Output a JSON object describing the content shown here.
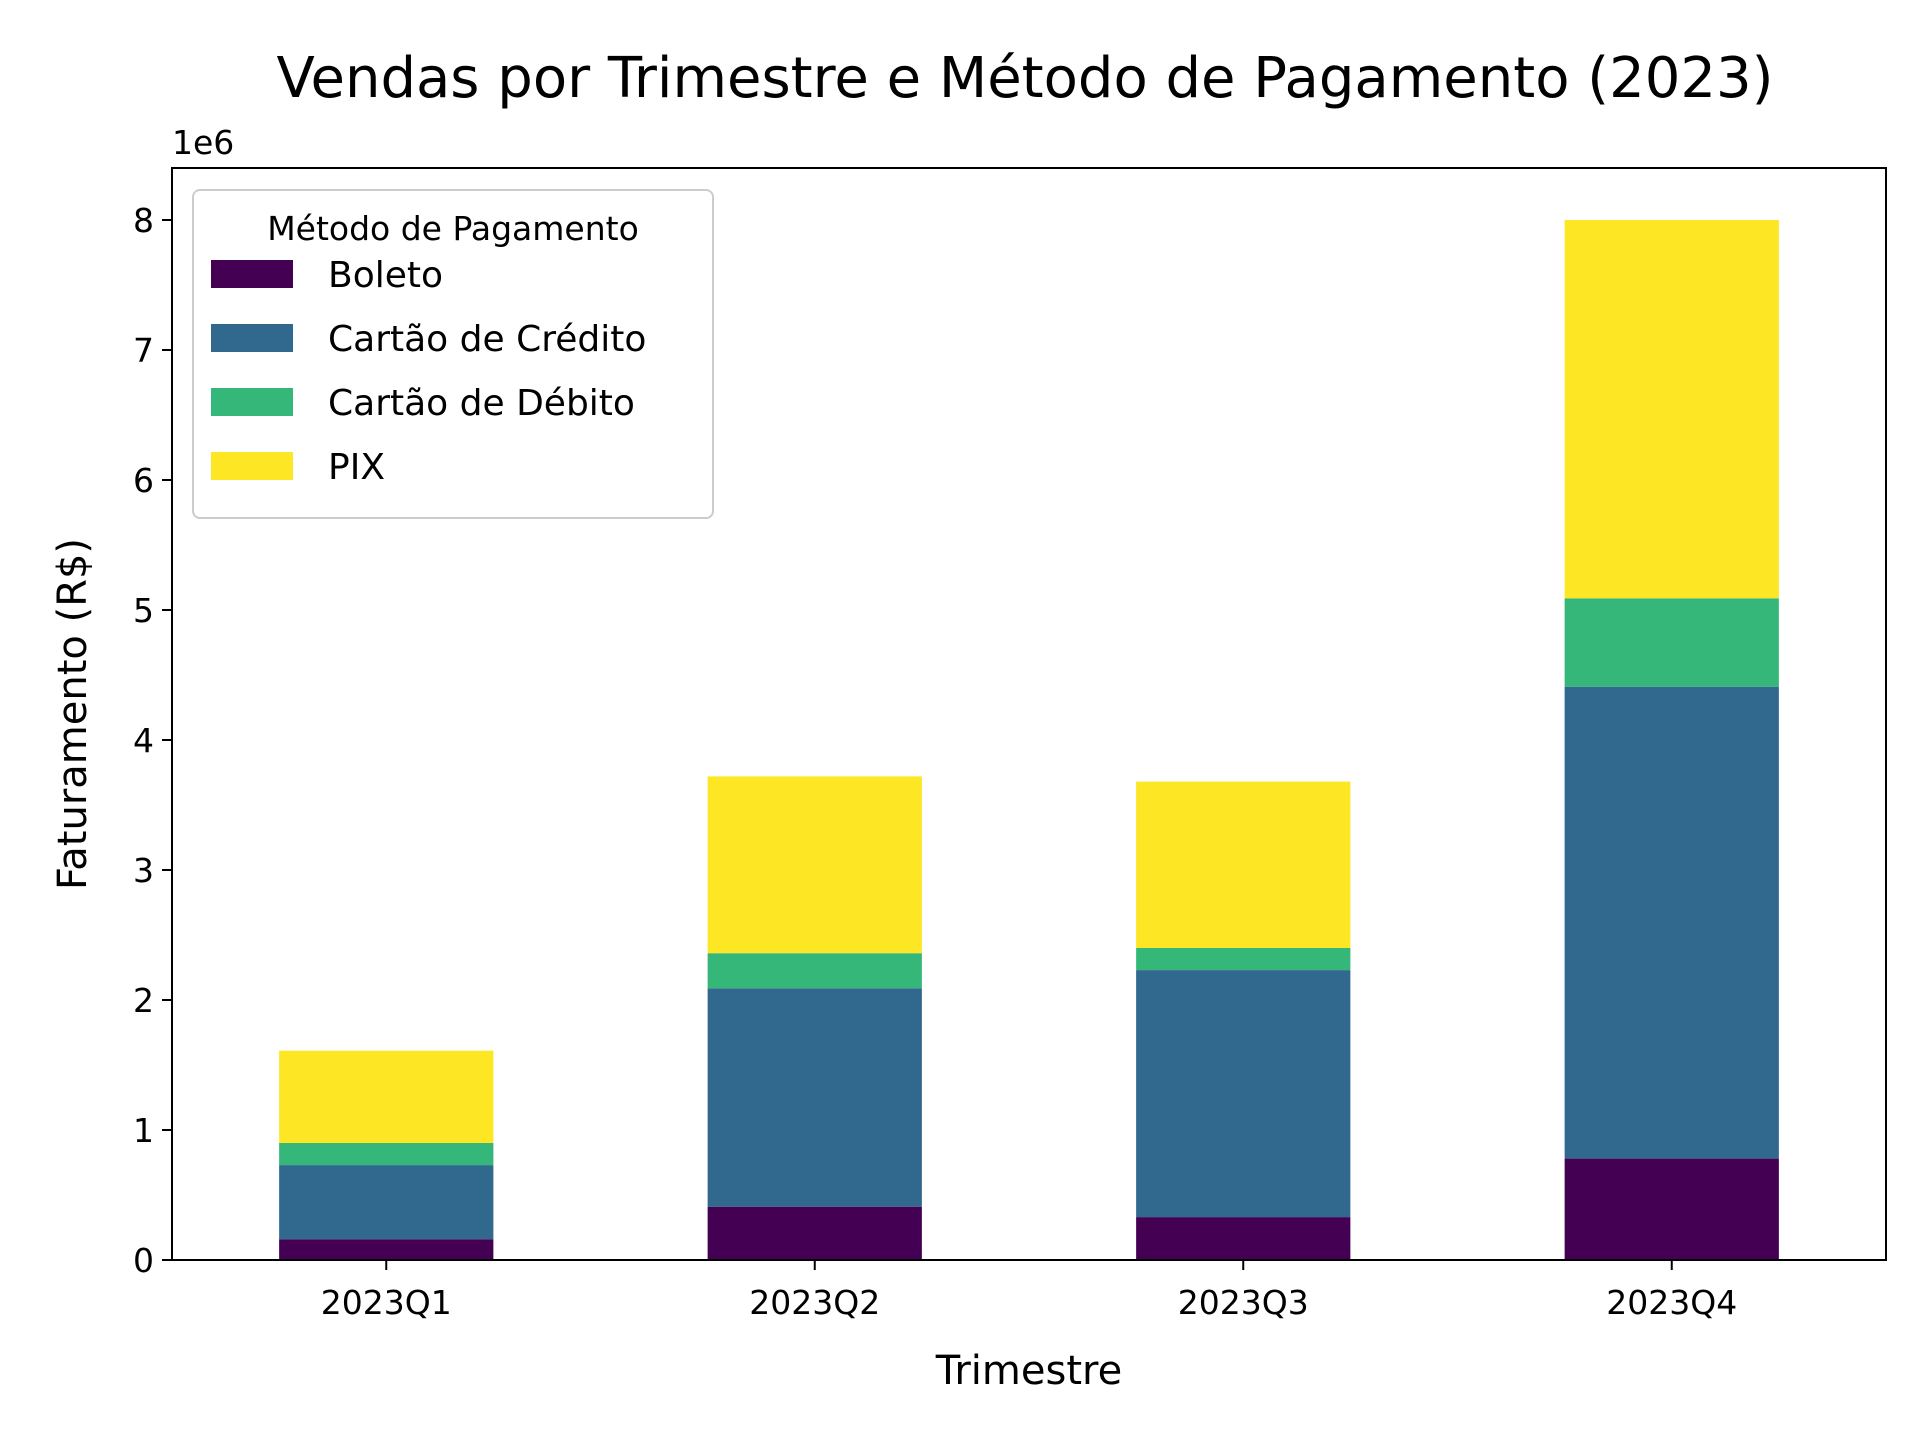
{
  "chart_data": {
    "type": "bar",
    "stacked": true,
    "title": "Vendas por Trimestre e Método de Pagamento (2023)",
    "xlabel": "Trimestre",
    "ylabel": "Faturamento (R$)",
    "y_offset_label": "1e6",
    "ylim": [
      0,
      8.4
    ],
    "y_ticks": [
      "0",
      "1",
      "2",
      "3",
      "4",
      "5",
      "6",
      "7",
      "8"
    ],
    "categories": [
      "2023Q1",
      "2023Q2",
      "2023Q3",
      "2023Q4"
    ],
    "legend_title": "Método de Pagamento",
    "legend_position": "upper-left",
    "grid": false,
    "series": [
      {
        "name": "Boleto",
        "color": "#440154",
        "values": [
          0.16,
          0.41,
          0.33,
          0.78
        ]
      },
      {
        "name": "Cartão de Crédito",
        "color": "#31688e",
        "values": [
          0.57,
          1.68,
          1.9,
          3.63
        ]
      },
      {
        "name": "Cartão de Débito",
        "color": "#35b779",
        "values": [
          0.17,
          0.27,
          0.17,
          0.68
        ]
      },
      {
        "name": "PIX",
        "color": "#fde725",
        "values": [
          0.71,
          1.36,
          1.28,
          2.91
        ]
      }
    ]
  }
}
